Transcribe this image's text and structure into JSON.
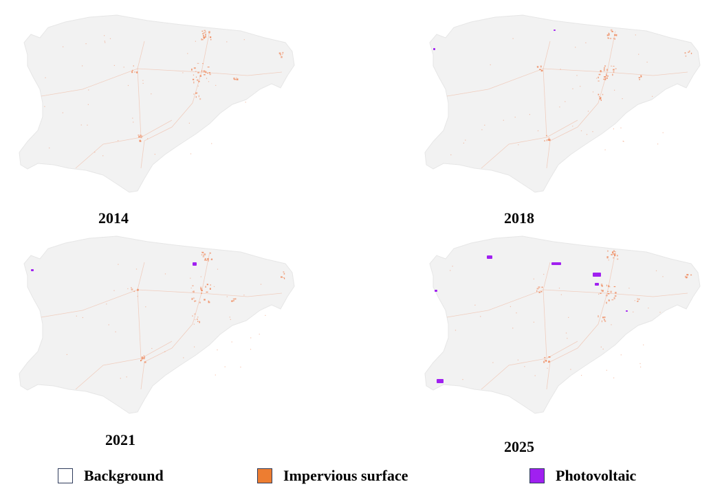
{
  "panels": [
    {
      "year": "2014",
      "pv": []
    },
    {
      "year": "2018",
      "pv": [
        "small"
      ]
    },
    {
      "year": "2021",
      "pv": [
        "medium"
      ]
    },
    {
      "year": "2025",
      "pv": [
        "large"
      ]
    }
  ],
  "legend": [
    {
      "key": "background",
      "label": "Background",
      "color": "#ffffff"
    },
    {
      "key": "impervious",
      "label": "Impervious surface",
      "color": "#ed7d31"
    },
    {
      "key": "photovoltaic",
      "label": "Photovoltaic",
      "color": "#a020f0"
    }
  ],
  "colors": {
    "land": "#f2f2f2",
    "impervious": "#ef8a5e",
    "photovoltaic": "#a020f0"
  }
}
